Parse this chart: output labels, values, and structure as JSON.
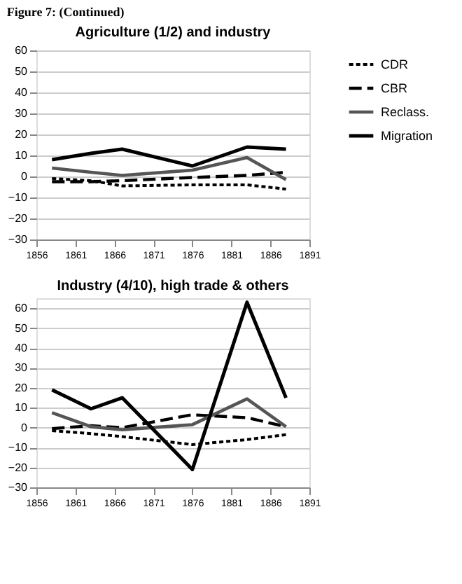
{
  "chart_data": [
    {
      "type": "line",
      "title": "Agriculture (1/2) and industry",
      "annotations": [
        "Figure 7:    (Continued)"
      ],
      "x": [
        1858,
        1863,
        1867,
        1876,
        1883,
        1888
      ],
      "xlim": [
        1856,
        1891
      ],
      "xticks": [
        1856,
        1861,
        1866,
        1871,
        1876,
        1881,
        1886,
        1891
      ],
      "ylim": [
        -30,
        60
      ],
      "yticks": [
        -30,
        -20,
        -10,
        0,
        10,
        20,
        30,
        40,
        50,
        60
      ],
      "grid": "y",
      "legend": "right",
      "marker": "none",
      "series": [
        {
          "name": "CDR",
          "color": "#000000",
          "line_style": "dotted",
          "values": [
            -1,
            -2,
            -4.5,
            -4,
            -4,
            -6
          ]
        },
        {
          "name": "CBR",
          "color": "#000000",
          "line_style": "dashed",
          "values": [
            -2.5,
            -2.5,
            -2,
            -0.5,
            0.5,
            2
          ]
        },
        {
          "name": "Reclass.",
          "color": "#555555",
          "line_style": "solid",
          "values": [
            4,
            2,
            0.5,
            3,
            9,
            -1.5
          ]
        },
        {
          "name": "Migration",
          "color": "#000000",
          "line_style": "solid",
          "values": [
            8,
            11,
            13,
            5,
            14,
            13
          ]
        }
      ]
    },
    {
      "type": "line",
      "title": "Industry (4/10), high trade & others",
      "x": [
        1858,
        1863,
        1867,
        1876,
        1883,
        1888
      ],
      "xlim": [
        1856,
        1891
      ],
      "xticks": [
        1856,
        1861,
        1866,
        1871,
        1876,
        1881,
        1886,
        1891
      ],
      "ylim": [
        -30,
        65
      ],
      "yticks": [
        -30,
        -20,
        -10,
        0,
        10,
        20,
        30,
        40,
        50,
        60
      ],
      "grid": "y",
      "legend": "right",
      "marker": "none",
      "series": [
        {
          "name": "CDR",
          "color": "#000000",
          "line_style": "dotted",
          "values": [
            -1.5,
            -3,
            -4.5,
            -8.5,
            -6,
            -3.5
          ]
        },
        {
          "name": "CBR",
          "color": "#000000",
          "line_style": "dashed",
          "values": [
            -0.5,
            1,
            0,
            6.5,
            5,
            0.5
          ]
        },
        {
          "name": "Reclass.",
          "color": "#555555",
          "line_style": "solid",
          "values": [
            7.5,
            0.5,
            -1,
            1.5,
            14.5,
            0.5
          ]
        },
        {
          "name": "Migration",
          "color": "#000000",
          "line_style": "solid",
          "values": [
            19,
            9.5,
            15,
            -21,
            63,
            15
          ]
        }
      ]
    }
  ]
}
